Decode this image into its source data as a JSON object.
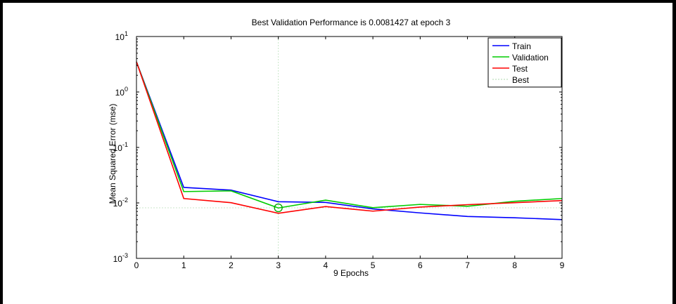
{
  "chart_data": {
    "type": "line",
    "title": "Best Validation Performance is 0.0081427 at epoch 3",
    "xlabel": "9 Epochs",
    "ylabel": "Mean Squared Error  (mse)",
    "x": [
      0,
      1,
      2,
      3,
      4,
      5,
      6,
      7,
      8,
      9
    ],
    "xlim": [
      0,
      9
    ],
    "ylim": [
      0.001,
      10
    ],
    "yscale": "log",
    "x_ticks": [
      "0",
      "1",
      "2",
      "3",
      "4",
      "5",
      "6",
      "7",
      "8",
      "9"
    ],
    "y_ticks": [
      {
        "value": 0.001,
        "base": "10",
        "exp": "-3"
      },
      {
        "value": 0.01,
        "base": "10",
        "exp": "-2"
      },
      {
        "value": 0.1,
        "base": "10",
        "exp": "-1"
      },
      {
        "value": 1,
        "base": "10",
        "exp": "0"
      },
      {
        "value": 10,
        "base": "10",
        "exp": "1"
      }
    ],
    "series": [
      {
        "name": "Train",
        "color": "#0000ff",
        "values": [
          3.5,
          0.019,
          0.017,
          0.0105,
          0.0102,
          0.0078,
          0.0066,
          0.0057,
          0.0054,
          0.005
        ]
      },
      {
        "name": "Validation",
        "color": "#00cc00",
        "values": [
          3.5,
          0.016,
          0.0165,
          0.0081,
          0.0112,
          0.0082,
          0.0094,
          0.0087,
          0.0107,
          0.012
        ]
      },
      {
        "name": "Test",
        "color": "#ff0000",
        "values": [
          3.5,
          0.012,
          0.0101,
          0.0065,
          0.0086,
          0.0071,
          0.0084,
          0.0093,
          0.0101,
          0.011
        ]
      }
    ],
    "best": {
      "name": "Best",
      "epoch": 3,
      "value": 0.0081427,
      "color": "#c8e6c8"
    },
    "legend": "top-right",
    "grid": false
  }
}
